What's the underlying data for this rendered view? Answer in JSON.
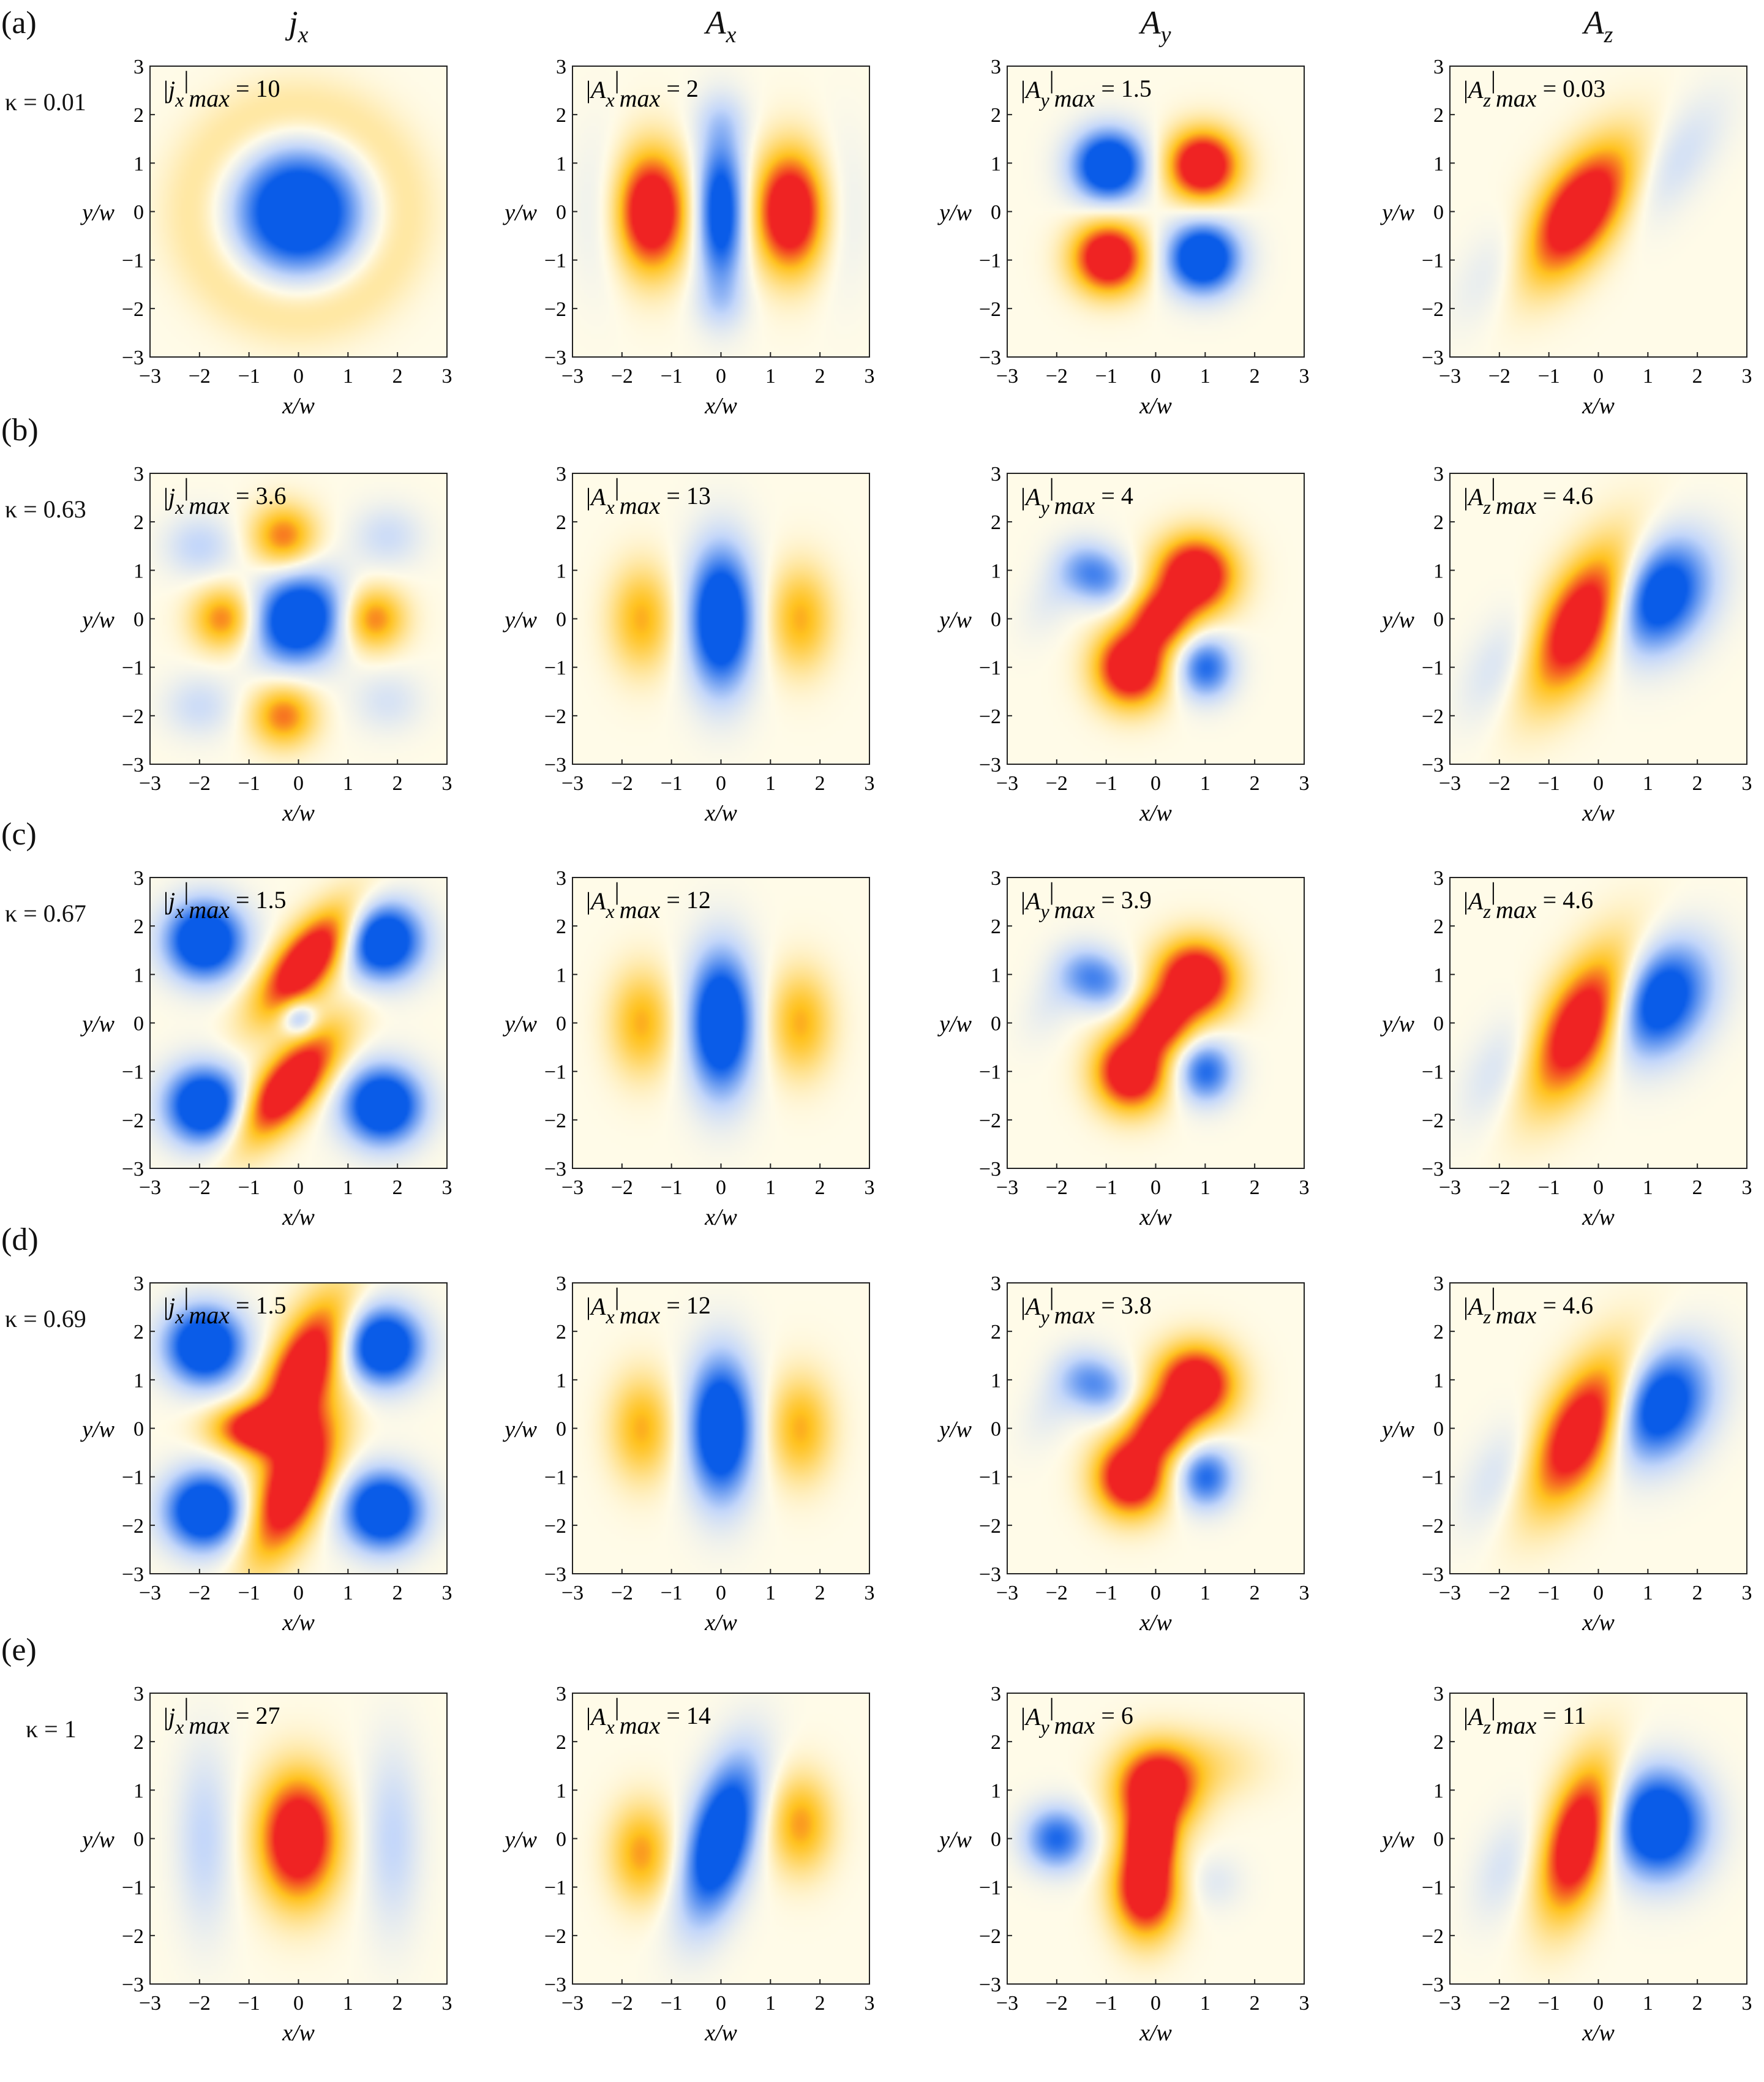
{
  "column_headers": [
    {
      "base": "j",
      "sub": "x"
    },
    {
      "base": "A",
      "sub": "x"
    },
    {
      "base": "A",
      "sub": "y"
    },
    {
      "base": "A",
      "sub": "z"
    }
  ],
  "rows": [
    {
      "label": "(a)",
      "kappa": "κ = 0.01",
      "maxes": [
        "10",
        "2",
        "1.5",
        "0.03"
      ]
    },
    {
      "label": "(b)",
      "kappa": "κ = 0.63",
      "maxes": [
        "3.6",
        "13",
        "4",
        "4.6"
      ]
    },
    {
      "label": "(c)",
      "kappa": "κ = 0.67",
      "maxes": [
        "1.5",
        "12",
        "3.9",
        "4.6"
      ]
    },
    {
      "label": "(d)",
      "kappa": "κ = 0.69",
      "maxes": [
        "1.5",
        "12",
        "3.8",
        "4.6"
      ]
    },
    {
      "label": "(e)",
      "kappa": "κ = 1",
      "maxes": [
        "27",
        "14",
        "6",
        "11"
      ]
    }
  ],
  "axes": {
    "xlabel": "x/w",
    "ylabel": "y/w",
    "ticks": [
      "−3",
      "−2",
      "−1",
      "0",
      "1",
      "2",
      "3"
    ],
    "range": [
      -3,
      3
    ]
  },
  "max_label_suffix": "max",
  "colormap": {
    "negative": "#0a5ce8",
    "zero": "#fffbe8",
    "positive": "#ef2323",
    "mid_positive": "#ffc21f"
  },
  "chart_data": {
    "type": "heatmap",
    "grid": "5 rows × 4 columns of density plots",
    "x_range": [
      -3,
      3
    ],
    "y_range": [
      -3,
      3
    ],
    "xlabel": "x/w",
    "ylabel": "y/w",
    "columns": [
      "jx",
      "Ax",
      "Ay",
      "Az"
    ],
    "row_kappa": [
      0.01,
      0.63,
      0.67,
      0.69,
      1
    ],
    "max_values": [
      [
        10,
        2,
        1.5,
        0.03
      ],
      [
        3.6,
        13,
        4,
        4.6
      ],
      [
        1.5,
        12,
        3.9,
        4.6
      ],
      [
        1.5,
        12,
        3.8,
        4.6
      ],
      [
        27,
        14,
        6,
        11
      ]
    ],
    "panels": [
      [
        {
          "lobes": [
            {
              "x": 0,
              "y": 0,
              "sx": 0.9,
              "sy": 0.9,
              "r": 0,
              "a": -1.3
            },
            {
              "ring": true,
              "r0": 2.0,
              "w": 0.55,
              "a": 0.25
            }
          ]
        },
        {
          "lobes": [
            {
              "x": -1.4,
              "y": 0,
              "sx": 0.5,
              "sy": 0.85,
              "r": 0,
              "a": 1.3
            },
            {
              "x": 1.4,
              "y": 0,
              "sx": 0.5,
              "sy": 0.85,
              "r": 0,
              "a": 1.3
            },
            {
              "x": 0,
              "y": 0,
              "sx": 0.35,
              "sy": 1.1,
              "r": 0,
              "a": -1.1
            },
            {
              "x": -2.4,
              "y": 0,
              "sx": 0.4,
              "sy": 1.1,
              "r": 0,
              "a": -0.15
            },
            {
              "x": 2.4,
              "y": 0,
              "sx": 0.4,
              "sy": 1.1,
              "r": 0,
              "a": -0.15
            },
            {
              "x": 0,
              "y": 1.9,
              "sx": 0.4,
              "sy": 0.4,
              "r": 0,
              "a": -0.15
            },
            {
              "x": 0,
              "y": -1.9,
              "sx": 0.4,
              "sy": 0.4,
              "r": 0,
              "a": -0.15
            }
          ]
        },
        {
          "lobes": [
            {
              "x": -0.95,
              "y": 0.95,
              "sx": 0.5,
              "sy": 0.5,
              "r": 0,
              "a": -1.3
            },
            {
              "x": 0.95,
              "y": 0.95,
              "sx": 0.5,
              "sy": 0.5,
              "r": 0,
              "a": 1.3
            },
            {
              "x": -0.95,
              "y": -0.95,
              "sx": 0.5,
              "sy": 0.5,
              "r": 0,
              "a": 1.3
            },
            {
              "x": 0.95,
              "y": -0.95,
              "sx": 0.5,
              "sy": 0.5,
              "r": 0,
              "a": -1.3
            }
          ]
        },
        {
          "lobes": [
            {
              "x": -0.4,
              "y": 0,
              "sx": 0.55,
              "sy": 1.1,
              "r": 35,
              "a": 1.3
            },
            {
              "x": 1.5,
              "y": 1.0,
              "sx": 0.45,
              "sy": 1.1,
              "r": 35,
              "a": -0.25
            },
            {
              "x": -1.9,
              "y": -1.0,
              "sx": 0.45,
              "sy": 1.0,
              "r": 35,
              "a": -0.2
            }
          ]
        }
      ],
      [
        {
          "lobes": [
            {
              "x": 0,
              "y": 0,
              "sx": 0.6,
              "sy": 0.65,
              "r": 40,
              "a": -1.3
            },
            {
              "x": -1.5,
              "y": 0,
              "sx": 0.45,
              "sy": 0.45,
              "r": 0,
              "a": 0.7
            },
            {
              "x": 1.5,
              "y": 0,
              "sx": 0.45,
              "sy": 0.45,
              "r": 0,
              "a": 0.7
            },
            {
              "x": -0.3,
              "y": 1.7,
              "sx": 0.45,
              "sy": 0.45,
              "r": 0,
              "a": 0.7
            },
            {
              "x": -0.3,
              "y": -2.0,
              "sx": 0.45,
              "sy": 0.45,
              "r": 0,
              "a": 0.7
            },
            {
              "x": -2.0,
              "y": 1.5,
              "sx": 0.5,
              "sy": 0.45,
              "r": 0,
              "a": -0.3
            },
            {
              "x": 1.8,
              "y": 1.7,
              "sx": 0.5,
              "sy": 0.45,
              "r": 0,
              "a": -0.25
            },
            {
              "x": -2.0,
              "y": -1.8,
              "sx": 0.5,
              "sy": 0.45,
              "r": 0,
              "a": -0.25
            },
            {
              "x": 1.8,
              "y": -1.7,
              "sx": 0.5,
              "sy": 0.45,
              "r": 0,
              "a": -0.2
            }
          ]
        },
        {
          "lobes": [
            {
              "x": 0,
              "y": 0,
              "sx": 0.45,
              "sy": 1.0,
              "r": 0,
              "a": -1.3
            },
            {
              "x": -1.6,
              "y": 0,
              "sx": 0.45,
              "sy": 0.75,
              "r": 0,
              "a": 0.55
            },
            {
              "x": 1.6,
              "y": 0,
              "sx": 0.45,
              "sy": 0.75,
              "r": 0,
              "a": 0.55
            }
          ]
        },
        {
          "lobes": [
            {
              "x": 0.8,
              "y": 0.9,
              "sx": 0.55,
              "sy": 0.55,
              "r": 0,
              "a": 1.3
            },
            {
              "x": -0.5,
              "y": -1.0,
              "sx": 0.5,
              "sy": 0.55,
              "r": 0,
              "a": 1.3
            },
            {
              "x": 0.1,
              "y": 0.0,
              "sx": 0.45,
              "sy": 0.45,
              "r": 0,
              "a": 0.9
            },
            {
              "x": -1.2,
              "y": 0.9,
              "sx": 0.5,
              "sy": 0.4,
              "r": 30,
              "a": -0.65
            },
            {
              "x": 1.0,
              "y": -1.0,
              "sx": 0.4,
              "sy": 0.45,
              "r": 0,
              "a": -0.8
            },
            {
              "x": -2.0,
              "y": 0.6,
              "sx": 0.35,
              "sy": 0.7,
              "r": 30,
              "a": -0.15
            }
          ]
        },
        {
          "lobes": [
            {
              "x": -0.3,
              "y": 0,
              "sx": 0.55,
              "sy": 1.2,
              "r": 30,
              "a": 1.3
            },
            {
              "x": 1.2,
              "y": 0.5,
              "sx": 0.65,
              "sy": 0.85,
              "r": 30,
              "a": -1.2
            },
            {
              "x": -1.9,
              "y": -0.9,
              "sx": 0.45,
              "sy": 0.9,
              "r": 30,
              "a": -0.25
            }
          ]
        }
      ],
      [
        {
          "lobes": [
            {
              "x": -1.9,
              "y": 1.7,
              "sx": 0.55,
              "sy": 0.55,
              "r": 0,
              "a": -1.3
            },
            {
              "x": 1.7,
              "y": 1.7,
              "sx": 0.55,
              "sy": 0.55,
              "r": 0,
              "a": -1.3
            },
            {
              "x": -1.9,
              "y": -1.7,
              "sx": 0.55,
              "sy": 0.55,
              "r": 0,
              "a": -1.3
            },
            {
              "x": 1.7,
              "y": -1.7,
              "sx": 0.55,
              "sy": 0.55,
              "r": 0,
              "a": -1.3
            },
            {
              "x": 0.2,
              "y": 1.3,
              "sx": 0.4,
              "sy": 1.0,
              "r": 40,
              "a": 1.3
            },
            {
              "x": -0.2,
              "y": -1.3,
              "sx": 0.4,
              "sy": 1.0,
              "r": 40,
              "a": 1.3
            },
            {
              "x": 0.0,
              "y": 0.1,
              "sx": 0.25,
              "sy": 0.25,
              "r": 0,
              "a": -0.6
            }
          ]
        },
        {
          "lobes": [
            {
              "x": 0,
              "y": 0,
              "sx": 0.45,
              "sy": 1.0,
              "r": 0,
              "a": -1.3
            },
            {
              "x": -1.6,
              "y": 0,
              "sx": 0.45,
              "sy": 0.75,
              "r": 0,
              "a": 0.55
            },
            {
              "x": 1.6,
              "y": 0,
              "sx": 0.45,
              "sy": 0.75,
              "r": 0,
              "a": 0.55
            }
          ]
        },
        {
          "lobes": [
            {
              "x": 0.8,
              "y": 0.9,
              "sx": 0.55,
              "sy": 0.55,
              "r": 0,
              "a": 1.3
            },
            {
              "x": -0.5,
              "y": -1.0,
              "sx": 0.5,
              "sy": 0.55,
              "r": 0,
              "a": 1.3
            },
            {
              "x": 0.1,
              "y": 0.0,
              "sx": 0.45,
              "sy": 0.45,
              "r": 0,
              "a": 0.9
            },
            {
              "x": -1.2,
              "y": 0.9,
              "sx": 0.5,
              "sy": 0.4,
              "r": 30,
              "a": -0.65
            },
            {
              "x": 1.0,
              "y": -1.0,
              "sx": 0.4,
              "sy": 0.45,
              "r": 0,
              "a": -0.8
            },
            {
              "x": -2.0,
              "y": 0.6,
              "sx": 0.35,
              "sy": 0.7,
              "r": 30,
              "a": -0.15
            }
          ]
        },
        {
          "lobes": [
            {
              "x": -0.3,
              "y": 0,
              "sx": 0.55,
              "sy": 1.2,
              "r": 30,
              "a": 1.3
            },
            {
              "x": 1.2,
              "y": 0.5,
              "sx": 0.65,
              "sy": 0.85,
              "r": 30,
              "a": -1.2
            },
            {
              "x": -1.9,
              "y": -0.9,
              "sx": 0.45,
              "sy": 0.9,
              "r": 30,
              "a": -0.25
            }
          ]
        }
      ],
      [
        {
          "lobes": [
            {
              "x": -1.9,
              "y": 1.7,
              "sx": 0.55,
              "sy": 0.55,
              "r": 0,
              "a": -1.3
            },
            {
              "x": 1.7,
              "y": 1.7,
              "sx": 0.55,
              "sy": 0.55,
              "r": 0,
              "a": -1.3
            },
            {
              "x": -1.9,
              "y": -1.7,
              "sx": 0.55,
              "sy": 0.55,
              "r": 0,
              "a": -1.3
            },
            {
              "x": 1.7,
              "y": -1.7,
              "sx": 0.55,
              "sy": 0.55,
              "r": 0,
              "a": -1.3
            },
            {
              "x": 0.1,
              "y": 1.2,
              "sx": 0.45,
              "sy": 1.1,
              "r": 25,
              "a": 1.3
            },
            {
              "x": -0.1,
              "y": -1.2,
              "sx": 0.45,
              "sy": 1.1,
              "r": 25,
              "a": 1.3
            },
            {
              "x": -0.9,
              "y": 0,
              "sx": 0.6,
              "sy": 0.35,
              "r": 0,
              "a": 1.0
            }
          ]
        },
        {
          "lobes": [
            {
              "x": 0,
              "y": 0,
              "sx": 0.45,
              "sy": 1.0,
              "r": 0,
              "a": -1.3
            },
            {
              "x": -1.6,
              "y": 0,
              "sx": 0.45,
              "sy": 0.75,
              "r": 0,
              "a": 0.55
            },
            {
              "x": 1.6,
              "y": 0,
              "sx": 0.45,
              "sy": 0.75,
              "r": 0,
              "a": 0.55
            }
          ]
        },
        {
          "lobes": [
            {
              "x": 0.8,
              "y": 0.9,
              "sx": 0.55,
              "sy": 0.55,
              "r": 0,
              "a": 1.3
            },
            {
              "x": -0.5,
              "y": -1.0,
              "sx": 0.5,
              "sy": 0.55,
              "r": 0,
              "a": 1.3
            },
            {
              "x": 0.1,
              "y": 0.0,
              "sx": 0.45,
              "sy": 0.45,
              "r": 0,
              "a": 0.9
            },
            {
              "x": -1.2,
              "y": 0.9,
              "sx": 0.5,
              "sy": 0.4,
              "r": 30,
              "a": -0.6
            },
            {
              "x": 1.0,
              "y": -1.0,
              "sx": 0.4,
              "sy": 0.45,
              "r": 0,
              "a": -0.8
            },
            {
              "x": -2.0,
              "y": 0.6,
              "sx": 0.35,
              "sy": 0.7,
              "r": 30,
              "a": -0.15
            }
          ]
        },
        {
          "lobes": [
            {
              "x": -0.3,
              "y": 0,
              "sx": 0.55,
              "sy": 1.2,
              "r": 30,
              "a": 1.3
            },
            {
              "x": 1.2,
              "y": 0.5,
              "sx": 0.65,
              "sy": 0.85,
              "r": 30,
              "a": -1.2
            },
            {
              "x": -1.9,
              "y": -0.9,
              "sx": 0.45,
              "sy": 0.9,
              "r": 30,
              "a": -0.25
            }
          ]
        }
      ],
      [
        {
          "lobes": [
            {
              "x": 0,
              "y": 0,
              "sx": 0.55,
              "sy": 0.9,
              "r": 0,
              "a": 1.3
            },
            {
              "x": -1.9,
              "y": 0,
              "sx": 0.4,
              "sy": 1.3,
              "r": 0,
              "a": -0.3
            },
            {
              "x": 1.9,
              "y": 0,
              "sx": 0.4,
              "sy": 1.3,
              "r": 0,
              "a": -0.3
            }
          ]
        },
        {
          "lobes": [
            {
              "x": 0,
              "y": 0,
              "sx": 0.45,
              "sy": 1.15,
              "r": 15,
              "a": -1.3
            },
            {
              "x": -1.6,
              "y": -0.3,
              "sx": 0.45,
              "sy": 0.7,
              "r": 0,
              "a": 0.6
            },
            {
              "x": 1.6,
              "y": 0.3,
              "sx": 0.45,
              "sy": 0.7,
              "r": 0,
              "a": 0.6
            }
          ]
        },
        {
          "lobes": [
            {
              "x": 0.0,
              "y": 1.0,
              "sx": 0.55,
              "sy": 0.6,
              "r": 0,
              "a": 1.3
            },
            {
              "x": -0.2,
              "y": -1.0,
              "sx": 0.45,
              "sy": 0.7,
              "r": 0,
              "a": 1.3
            },
            {
              "x": -0.1,
              "y": 0,
              "sx": 0.3,
              "sy": 0.4,
              "r": 0,
              "a": 1.0
            },
            {
              "x": -2.0,
              "y": 0,
              "sx": 0.45,
              "sy": 0.45,
              "r": 0,
              "a": -0.8
            },
            {
              "x": 1.2,
              "y": -0.9,
              "sx": 0.4,
              "sy": 0.4,
              "r": 0,
              "a": -0.15
            },
            {
              "x": 1.0,
              "y": 1.5,
              "sx": 0.8,
              "sy": 0.5,
              "r": 0,
              "a": 0.25
            }
          ]
        },
        {
          "lobes": [
            {
              "x": -0.4,
              "y": 0,
              "sx": 0.45,
              "sy": 1.1,
              "r": 15,
              "a": 1.3
            },
            {
              "x": 1.2,
              "y": 0.3,
              "sx": 0.65,
              "sy": 0.75,
              "r": 0,
              "a": -1.3
            },
            {
              "x": -1.9,
              "y": -0.6,
              "sx": 0.4,
              "sy": 0.8,
              "r": 20,
              "a": -0.2
            }
          ]
        }
      ]
    ]
  }
}
